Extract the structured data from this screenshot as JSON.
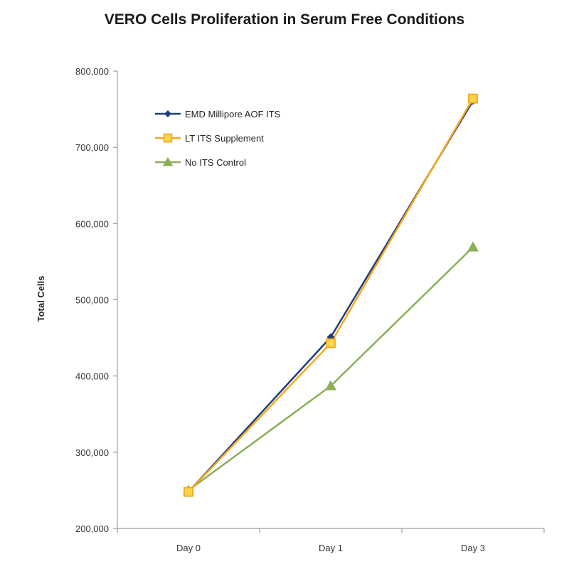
{
  "chart_data": {
    "type": "line",
    "title": "VERO Cells Proliferation in Serum Free Conditions",
    "xlabel": "",
    "ylabel": "Total Cells",
    "categories": [
      "Day 0",
      "Day 1",
      "Day 3"
    ],
    "ylim": [
      200000,
      800000
    ],
    "yticks": [
      200000,
      300000,
      400000,
      500000,
      600000,
      700000,
      800000
    ],
    "ytick_labels": [
      "200,000",
      "300,000",
      "400,000",
      "500,000",
      "600,000",
      "700,000",
      "800,000"
    ],
    "grid": false,
    "legend_position": "top-left",
    "series": [
      {
        "name": "EMD Millipore AOF ITS",
        "values": [
          248000,
          451000,
          761000
        ],
        "color": "#1f3d7a",
        "marker": "diamond"
      },
      {
        "name": "LT ITS Supplement",
        "values": [
          248000,
          443000,
          764000
        ],
        "color": "#f7a81b",
        "marker": "square"
      },
      {
        "name": "No ITS Control",
        "values": [
          250000,
          387000,
          569000
        ],
        "color": "#8cae55",
        "marker": "triangle"
      }
    ]
  }
}
